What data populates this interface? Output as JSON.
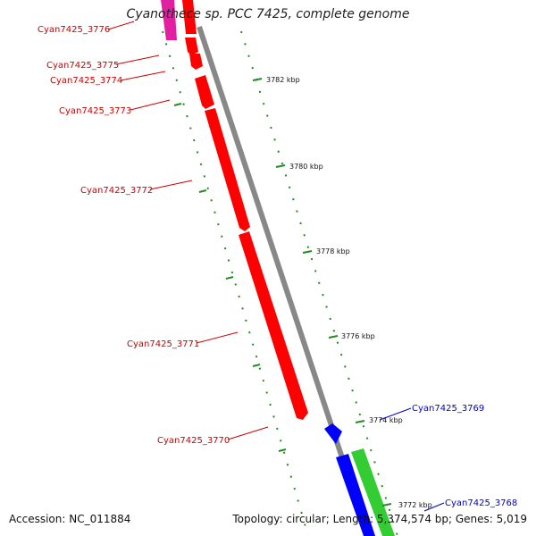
{
  "title": "Cyanothece sp. PCC 7425, complete genome",
  "footer": {
    "accession": "Accession: NC_011884",
    "topology": "Topology: circular; Length: 5,374,574 bp; Genes: 5,019"
  },
  "colors": {
    "reverse_strand": "#ff0000",
    "forward_strand": "#0000ff",
    "forward_strand_2": "#33cc33",
    "other_gene": "#e020a0",
    "backbone": "#888888",
    "tick": "#228B22",
    "label_reverse": "#cc0000",
    "label_forward": "#0000cc"
  },
  "ticks": [
    {
      "label": "3782 kbp",
      "kbp": 3782
    },
    {
      "label": "3780 kbp",
      "kbp": 3780
    },
    {
      "label": "3778 kbp",
      "kbp": 3778
    },
    {
      "label": "3776 kbp",
      "kbp": 3776
    },
    {
      "label": "3774 kbp",
      "kbp": 3774
    },
    {
      "label": "3772 kbp",
      "kbp": 3772
    }
  ],
  "genes": [
    {
      "name": "Cyan7425_3776",
      "strand": "reverse"
    },
    {
      "name": "Cyan7425_3775",
      "strand": "reverse"
    },
    {
      "name": "Cyan7425_3774",
      "strand": "reverse"
    },
    {
      "name": "Cyan7425_3773",
      "strand": "reverse"
    },
    {
      "name": "Cyan7425_3772",
      "strand": "reverse"
    },
    {
      "name": "Cyan7425_3771",
      "strand": "reverse"
    },
    {
      "name": "Cyan7425_3770",
      "strand": "reverse"
    },
    {
      "name": "Cyan7425_3769",
      "strand": "forward"
    },
    {
      "name": "Cyan7425_3768",
      "strand": "forward"
    }
  ]
}
